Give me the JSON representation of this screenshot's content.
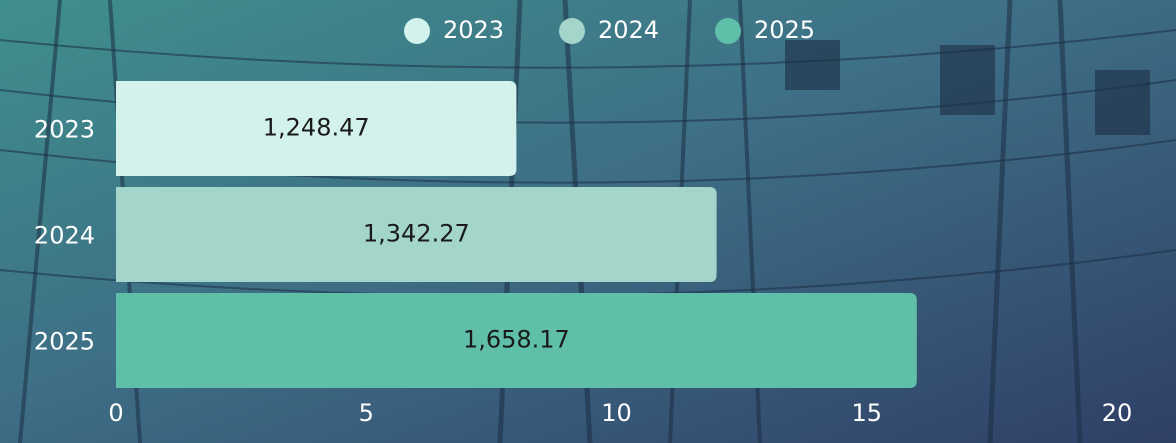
{
  "chart_data": {
    "type": "bar",
    "orientation": "horizontal",
    "categories": [
      "2023",
      "2024",
      "2025"
    ],
    "values": [
      8,
      12,
      16
    ],
    "colors": [
      "#d4f2ec",
      "#a3d5cb",
      "#5fbfa8"
    ],
    "bar_texts": [
      "1,248.47",
      "1,342.27",
      "1,658.17"
    ],
    "xlim": [
      0,
      20
    ],
    "xticks": [
      0,
      5,
      10,
      15,
      20
    ],
    "legend": "top"
  }
}
